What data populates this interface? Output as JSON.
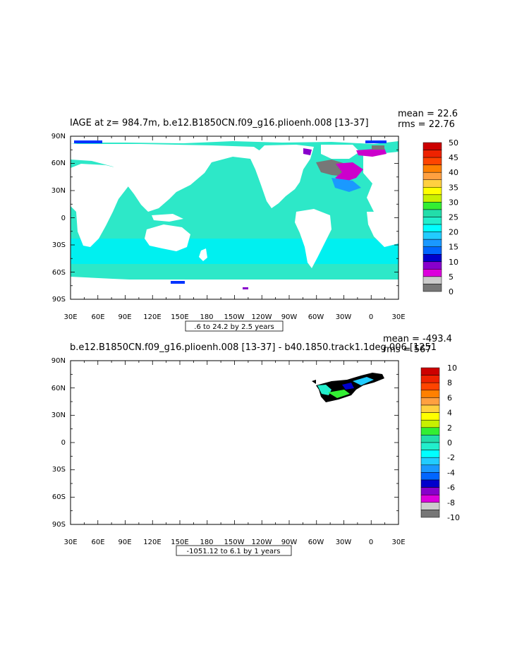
{
  "panels": [
    {
      "title": "IAGE at z= 984.7m, b.e12.B1850CN.f09_g16.plioenh.008 [13-37]",
      "stats": [
        "mean = 22.6",
        "rms = 22.76"
      ],
      "range_label": ".6 to 24.2 by 2.5 years",
      "lat_labels": [
        "90N",
        "60N",
        "30N",
        "0",
        "30S",
        "60S",
        "90S"
      ],
      "lon_labels": [
        "30E",
        "60E",
        "90E",
        "120E",
        "150E",
        "180",
        "150W",
        "120W",
        "90W",
        "60W",
        "30W",
        "0",
        "30E"
      ],
      "colorbar": {
        "labels": [
          "50",
          "45",
          "40",
          "35",
          "30",
          "25",
          "20",
          "15",
          "10",
          "5",
          "0"
        ],
        "colors": [
          "#cc0000",
          "#ee2200",
          "#ff4400",
          "#ff8000",
          "#ffa040",
          "#ffd040",
          "#ffff00",
          "#c8f000",
          "#33ee33",
          "#22ddaa",
          "#22eecc",
          "#00ffff",
          "#22ccff",
          "#1a99ff",
          "#0066ff",
          "#0000cc",
          "#8800cc",
          "#dd00dd",
          "#cccccc",
          "#777777"
        ]
      }
    },
    {
      "title": "b.e12.B1850CN.f09_g16.plioenh.008 [13-37] - b40.1850.track1.1deg.006 [1251",
      "stats": [
        "mean = -493.4",
        "rms = 567"
      ],
      "range_label": "-1051.12 to 6.1 by 1 years",
      "lat_labels": [
        "90N",
        "60N",
        "30N",
        "0",
        "30S",
        "60S",
        "90S"
      ],
      "lon_labels": [
        "30E",
        "60E",
        "90E",
        "120E",
        "150E",
        "180",
        "150W",
        "120W",
        "90W",
        "60W",
        "30W",
        "0",
        "30E"
      ],
      "colorbar": {
        "labels": [
          "10",
          "8",
          "6",
          "4",
          "2",
          "0",
          "-2",
          "-4",
          "-6",
          "-8",
          "-10"
        ],
        "colors": [
          "#cc0000",
          "#ee2200",
          "#ff4400",
          "#ff8000",
          "#ffa040",
          "#ffd040",
          "#ffff00",
          "#c8f000",
          "#33ee33",
          "#22ddaa",
          "#22eecc",
          "#00ffff",
          "#22ccff",
          "#1a99ff",
          "#0066ff",
          "#0000cc",
          "#8800cc",
          "#dd00dd",
          "#cccccc",
          "#777777"
        ]
      }
    }
  ],
  "colors": {
    "ocean_main": "#2de8c8",
    "ocean_band": "#00f0f0",
    "land": "#ffffff",
    "grey_zone": "#777777",
    "magenta": "#cc00cc",
    "purple": "#8800cc",
    "blue": "#0033ff"
  }
}
